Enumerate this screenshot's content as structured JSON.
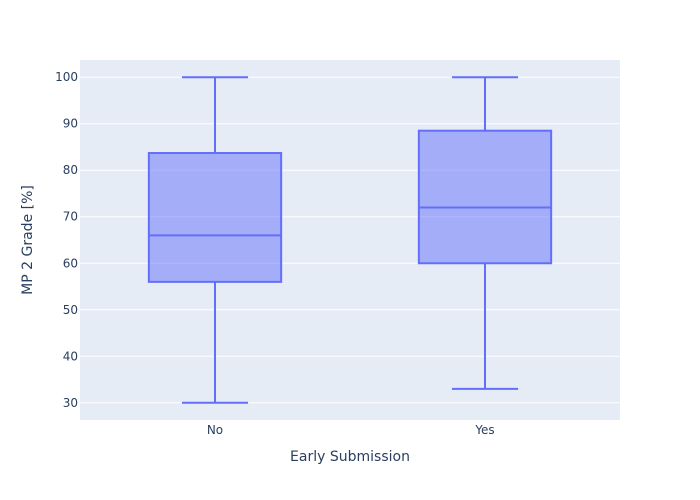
{
  "chart_data": {
    "type": "box",
    "title": "",
    "xlabel": "Early Submission",
    "ylabel": "MP 2 Grade [%]",
    "categories": [
      "No",
      "Yes"
    ],
    "boxes": [
      {
        "category": "No",
        "min": 30,
        "q1": 56,
        "median": 66,
        "q3": 83.7,
        "max": 100
      },
      {
        "category": "Yes",
        "min": 33,
        "q1": 60,
        "median": 72,
        "q3": 88.5,
        "max": 100
      }
    ],
    "ylim": [
      26.3,
      103.7
    ],
    "yticks": [
      30,
      40,
      50,
      60,
      70,
      80,
      90,
      100
    ],
    "grid": true,
    "colors": {
      "box_line": "#636efa",
      "box_fill": "rgba(99,110,250,0.5)",
      "plot_bg": "#e5ecf6",
      "grid": "#ffffff"
    }
  }
}
